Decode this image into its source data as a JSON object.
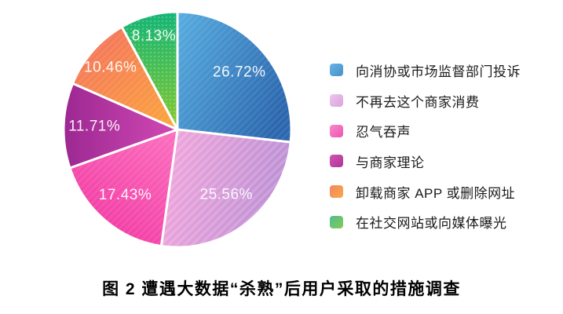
{
  "chart_data": {
    "type": "pie",
    "title": "图 2 遭遇大数据“杀熟”后用户采取的措施调查",
    "legend_position": "right",
    "start_angle_deg": 0,
    "direction": "clockwise",
    "label_text_color": "#ffffff",
    "background_color": "#ffffff",
    "slices": [
      {
        "label": "向消协或市场监督部门投诉",
        "value": 26.72,
        "display": "26.72%",
        "color_start": "#55aade",
        "color_end": "#2b67ae",
        "swatch_start": "#66b4e6",
        "swatch_end": "#4890c8",
        "texture": "stripes"
      },
      {
        "label": "不再去这个商家消费",
        "value": 25.56,
        "display": "25.56%",
        "color_start": "#f0a6dc",
        "color_end": "#b98ed4",
        "swatch_start": "#eec6ea",
        "swatch_end": "#d9a3dd",
        "texture": "stripes-strong"
      },
      {
        "label": "忍气吞声",
        "value": 17.43,
        "display": "17.43%",
        "color_start": "#fb6abc",
        "color_end": "#f0339f",
        "swatch_start": "#f989c9",
        "swatch_end": "#ef55b1",
        "texture": "stripes"
      },
      {
        "label": "与商家理论",
        "value": 11.71,
        "display": "11.71%",
        "color_start": "#9c2892",
        "color_end": "#d149b3",
        "swatch_start": "#cd55b2",
        "swatch_end": "#b03498",
        "texture": "none"
      },
      {
        "label": "卸载商家 APP 或删除网址",
        "value": 10.46,
        "display": "10.46%",
        "color_start": "#f3705f",
        "color_end": "#fba43c",
        "swatch_start": "#f28762",
        "swatch_end": "#f9a74a",
        "texture": "stripes"
      },
      {
        "label": "在社交网站或向媒体曝光",
        "value": 8.13,
        "display": "8.13%",
        "color_start": "#12b577",
        "color_end": "#88c92e",
        "swatch_start": "#52bd8c",
        "swatch_end": "#83ca57",
        "texture": "dots"
      }
    ]
  }
}
